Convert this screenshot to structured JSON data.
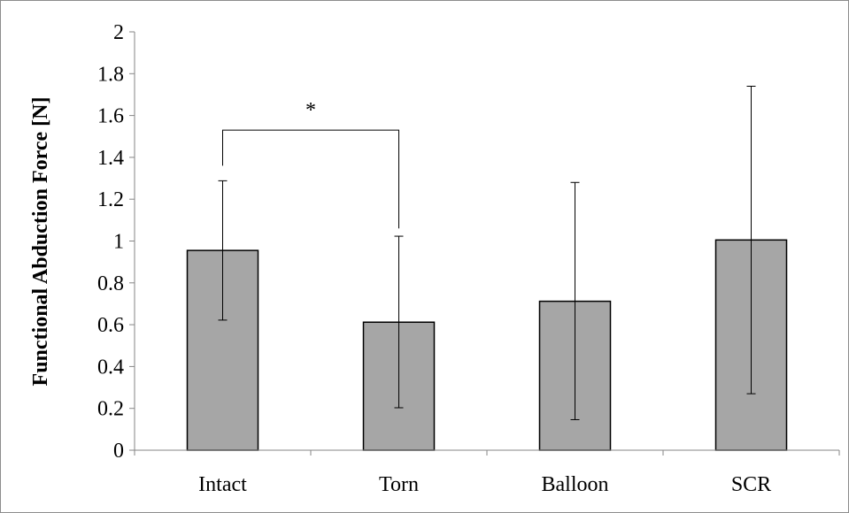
{
  "chart_data": {
    "type": "bar",
    "title": "",
    "xlabel": "",
    "ylabel": "Functional Abduction Force [N]",
    "categories": [
      "Intact",
      "Torn",
      "Balloon",
      "SCR"
    ],
    "values": [
      0.955,
      0.612,
      0.712,
      1.005
    ],
    "error_low": [
      0.622,
      0.203,
      0.146,
      0.27
    ],
    "error_high": [
      1.288,
      1.023,
      1.28,
      1.74
    ],
    "ylim": [
      0,
      2
    ],
    "yticks": [
      0,
      0.2,
      0.4,
      0.6,
      0.8,
      1,
      1.2,
      1.4,
      1.6,
      1.8,
      2
    ],
    "ytick_labels": [
      "0",
      "0.2",
      "0.4",
      "0.6",
      "0.8",
      "1",
      "1.2",
      "1.4",
      "1.6",
      "1.8",
      "2"
    ],
    "grid": false,
    "legend": "none",
    "bar_color": "#a6a6a6",
    "significance": [
      {
        "from": "Intact",
        "to": "Torn",
        "label": "*",
        "bracket_y": 1.53,
        "left_end_y": 1.36,
        "right_end_y": 1.06
      }
    ]
  }
}
